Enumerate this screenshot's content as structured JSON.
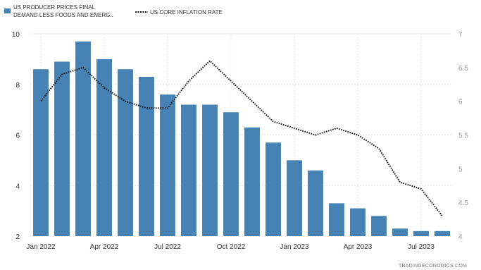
{
  "chart_data": {
    "type": "bar+line",
    "categories": [
      "Jan 2022",
      "Feb 2022",
      "Mar 2022",
      "Apr 2022",
      "May 2022",
      "Jun 2022",
      "Jul 2022",
      "Aug 2022",
      "Sep 2022",
      "Oct 2022",
      "Nov 2022",
      "Dec 2022",
      "Jan 2023",
      "Feb 2023",
      "Mar 2023",
      "Apr 2023",
      "May 2023",
      "Jun 2023",
      "Jul 2023",
      "Aug 2023"
    ],
    "x_tick_labels": [
      {
        "index": 0,
        "label": "Jan 2022"
      },
      {
        "index": 3,
        "label": "Apr 2022"
      },
      {
        "index": 6,
        "label": "Jul 2022"
      },
      {
        "index": 9,
        "label": "Oct 2022"
      },
      {
        "index": 12,
        "label": "Jan 2023"
      },
      {
        "index": 15,
        "label": "Apr 2023"
      },
      {
        "index": 18,
        "label": "Jul 2023"
      }
    ],
    "series": [
      {
        "name_line1": "US PRODUCER PRICES FINAL",
        "name_line2": "DEMAND LESS FOODS AND ENERG..",
        "kind": "bar",
        "axis": "left",
        "color": "#4682b4",
        "values": [
          8.6,
          8.9,
          9.7,
          9.0,
          8.6,
          8.3,
          7.6,
          7.2,
          7.2,
          6.9,
          6.3,
          5.7,
          5.0,
          4.6,
          3.3,
          3.1,
          2.8,
          2.3,
          2.2,
          2.2
        ]
      },
      {
        "name": "US CORE INFLATION RATE",
        "kind": "line",
        "style": "dotted",
        "axis": "right",
        "color": "#111111",
        "values": [
          6.0,
          6.4,
          6.5,
          6.2,
          6.0,
          5.9,
          5.9,
          6.3,
          6.6,
          6.3,
          6.0,
          5.7,
          5.6,
          5.5,
          5.6,
          5.5,
          5.3,
          4.8,
          4.7,
          4.3
        ]
      }
    ],
    "y_left": {
      "ticks": [
        2,
        4,
        6,
        8,
        10
      ],
      "ylim": [
        2,
        10
      ]
    },
    "y_right": {
      "ticks": [
        4,
        4.5,
        5,
        5.5,
        6,
        6.5,
        7
      ],
      "ylim": [
        4,
        7
      ]
    },
    "grid": true,
    "legend_position": "top-left"
  },
  "source_label": "TRADINGECONOMICS.COM"
}
